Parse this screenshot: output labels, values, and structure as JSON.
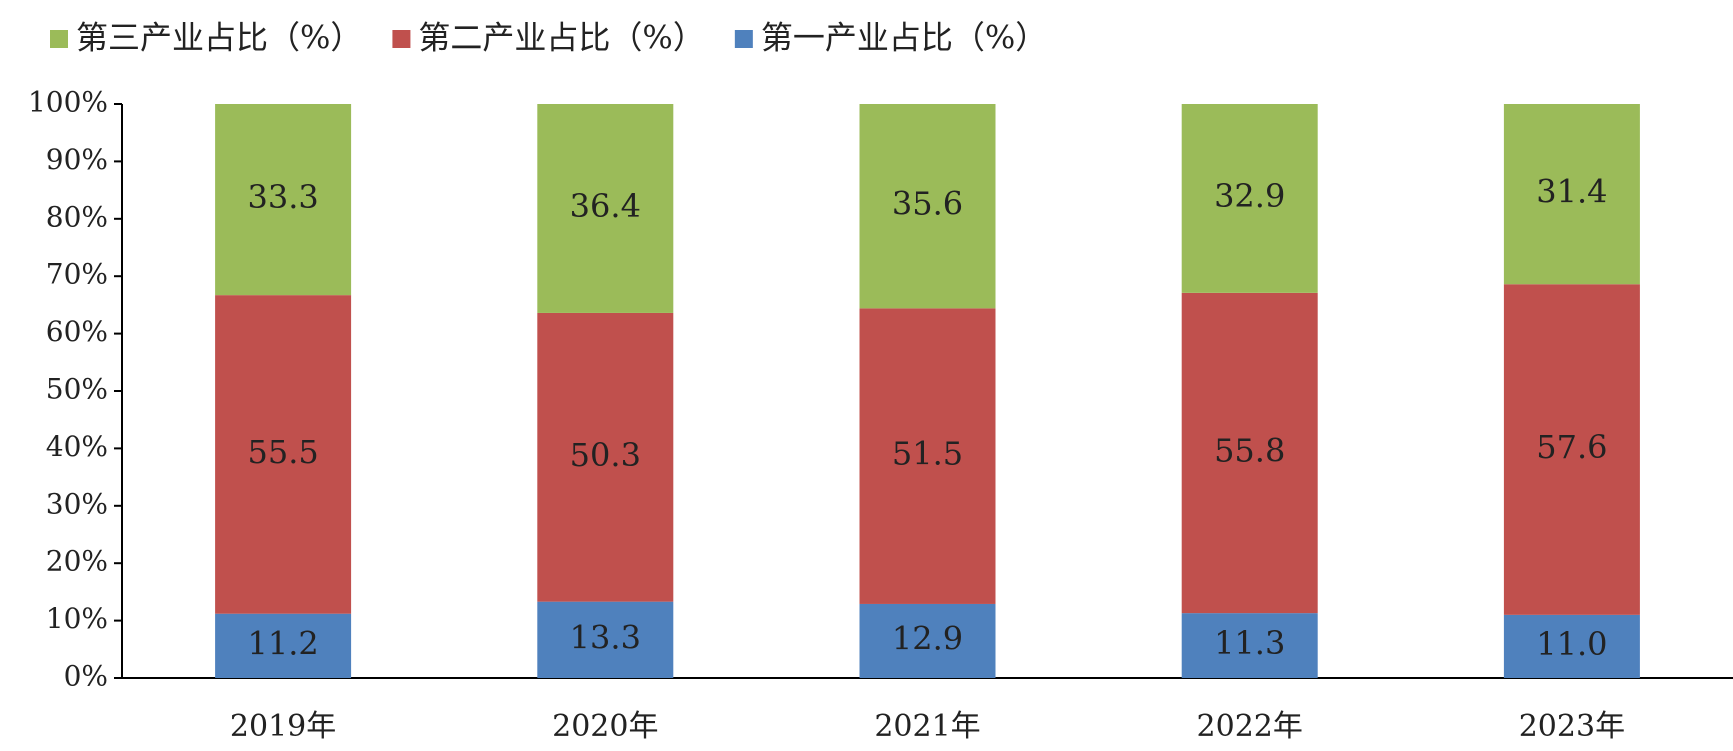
{
  "chart_data": {
    "type": "stacked_bar",
    "categories": [
      "2019年",
      "2020年",
      "2021年",
      "2022年",
      "2023年"
    ],
    "series": [
      {
        "name": "第一产业占比（%）",
        "color": "#4f81bd",
        "values": [
          11.2,
          13.3,
          12.9,
          11.3,
          11.0
        ],
        "value_labels": [
          "11.2",
          "13.3",
          "12.9",
          "11.3",
          "11.0"
        ]
      },
      {
        "name": "第二产业占比（%）",
        "color": "#c0504d",
        "values": [
          55.5,
          50.3,
          51.5,
          55.8,
          57.6
        ]
      },
      {
        "name": "第三产业占比（%）",
        "color": "#9bbb59",
        "values": [
          33.3,
          36.4,
          35.6,
          32.9,
          31.4
        ]
      }
    ],
    "ylim": [
      0,
      100
    ],
    "yticks": [
      {
        "value": 0,
        "label": "0%"
      },
      {
        "value": 10,
        "label": "10%"
      },
      {
        "value": 20,
        "label": "20%"
      },
      {
        "value": 30,
        "label": "30%"
      },
      {
        "value": 40,
        "label": "40%"
      },
      {
        "value": 50,
        "label": "50%"
      },
      {
        "value": 60,
        "label": "60%"
      },
      {
        "value": 70,
        "label": "70%"
      },
      {
        "value": 80,
        "label": "80%"
      },
      {
        "value": 90,
        "label": "90%"
      },
      {
        "value": 100,
        "label": "100%"
      }
    ],
    "legend": "top-left"
  }
}
